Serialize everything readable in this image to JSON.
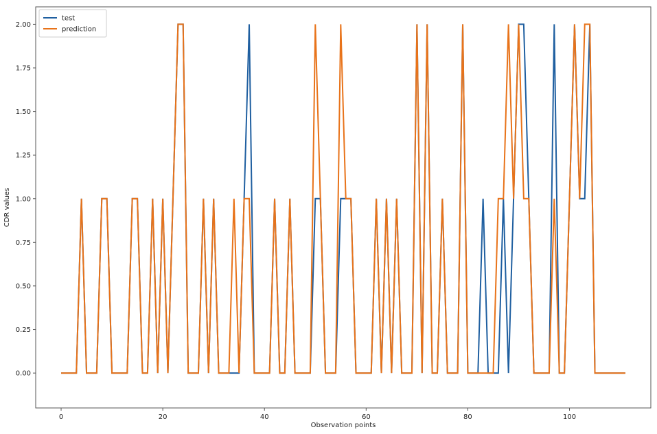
{
  "chart_data": {
    "type": "line",
    "title": "",
    "xlabel": "Observation points",
    "ylabel": "CDR values",
    "xlim": [
      -5,
      116
    ],
    "ylim": [
      -0.2,
      2.1
    ],
    "xticks": [
      "0",
      "20",
      "40",
      "60",
      "80",
      "100"
    ],
    "xtick_values": [
      0,
      20,
      40,
      60,
      80,
      100
    ],
    "yticks": [
      "0.00",
      "0.25",
      "0.50",
      "0.75",
      "1.00",
      "1.25",
      "1.50",
      "1.75",
      "2.00"
    ],
    "ytick_values": [
      0,
      0.25,
      0.5,
      0.75,
      1.0,
      1.25,
      1.5,
      1.75,
      2.0
    ],
    "grid": false,
    "legend_position": "top-left",
    "x": [
      0,
      1,
      2,
      3,
      4,
      5,
      6,
      7,
      8,
      9,
      10,
      11,
      12,
      13,
      14,
      15,
      16,
      17,
      18,
      19,
      20,
      21,
      22,
      23,
      24,
      25,
      26,
      27,
      28,
      29,
      30,
      31,
      32,
      33,
      34,
      35,
      36,
      37,
      38,
      39,
      40,
      41,
      42,
      43,
      44,
      45,
      46,
      47,
      48,
      49,
      50,
      51,
      52,
      53,
      54,
      55,
      56,
      57,
      58,
      59,
      60,
      61,
      62,
      63,
      64,
      65,
      66,
      67,
      68,
      69,
      70,
      71,
      72,
      73,
      74,
      75,
      76,
      77,
      78,
      79,
      80,
      81,
      82,
      83,
      84,
      85,
      86,
      87,
      88,
      89,
      90,
      91,
      92,
      93,
      94,
      95,
      96,
      97,
      98,
      99,
      100,
      101,
      102,
      103,
      104,
      105,
      106,
      107,
      108,
      109,
      110,
      111
    ],
    "series": [
      {
        "name": "test",
        "color": "#1f5fa0",
        "values": [
          0,
          0,
          0,
          0,
          1,
          0,
          0,
          0,
          1,
          1,
          0,
          0,
          0,
          0,
          1,
          1,
          0,
          0,
          1,
          0,
          1,
          0,
          1,
          2,
          2,
          0,
          0,
          0,
          1,
          0,
          1,
          0,
          0,
          0,
          0,
          0,
          1,
          2,
          0,
          0,
          0,
          0,
          1,
          0,
          0,
          1,
          0,
          0,
          0,
          0,
          1,
          1,
          0,
          0,
          0,
          1,
          1,
          1,
          0,
          0,
          0,
          0,
          1,
          0,
          1,
          0,
          1,
          0,
          0,
          0,
          2,
          0,
          2,
          0,
          0,
          1,
          0,
          0,
          0,
          2,
          0,
          0,
          0,
          1,
          0,
          0,
          0,
          1,
          0,
          1,
          2,
          2,
          1,
          0,
          0,
          0,
          0,
          2,
          0,
          0,
          1,
          2,
          1,
          1,
          2,
          0,
          0,
          0,
          0,
          0,
          0,
          0
        ]
      },
      {
        "name": "prediction",
        "color": "#e8731a",
        "values": [
          0,
          0,
          0,
          0,
          1,
          0,
          0,
          0,
          1,
          1,
          0,
          0,
          0,
          0,
          1,
          1,
          0,
          0,
          1,
          0,
          1,
          0,
          1,
          2,
          2,
          0,
          0,
          0,
          1,
          0,
          1,
          0,
          0,
          0,
          1,
          0,
          1,
          1,
          0,
          0,
          0,
          0,
          1,
          0,
          0,
          1,
          0,
          0,
          0,
          0,
          2,
          1,
          0,
          0,
          0,
          2,
          1,
          1,
          0,
          0,
          0,
          0,
          1,
          0,
          1,
          0,
          1,
          0,
          0,
          0,
          2,
          0,
          2,
          0,
          0,
          1,
          0,
          0,
          0,
          2,
          0,
          0,
          0,
          0,
          0,
          0,
          1,
          1,
          2,
          1,
          2,
          1,
          1,
          0,
          0,
          0,
          0,
          1,
          0,
          0,
          1,
          2,
          1,
          2,
          2,
          0,
          0,
          0,
          0,
          0,
          0,
          0
        ]
      }
    ]
  }
}
